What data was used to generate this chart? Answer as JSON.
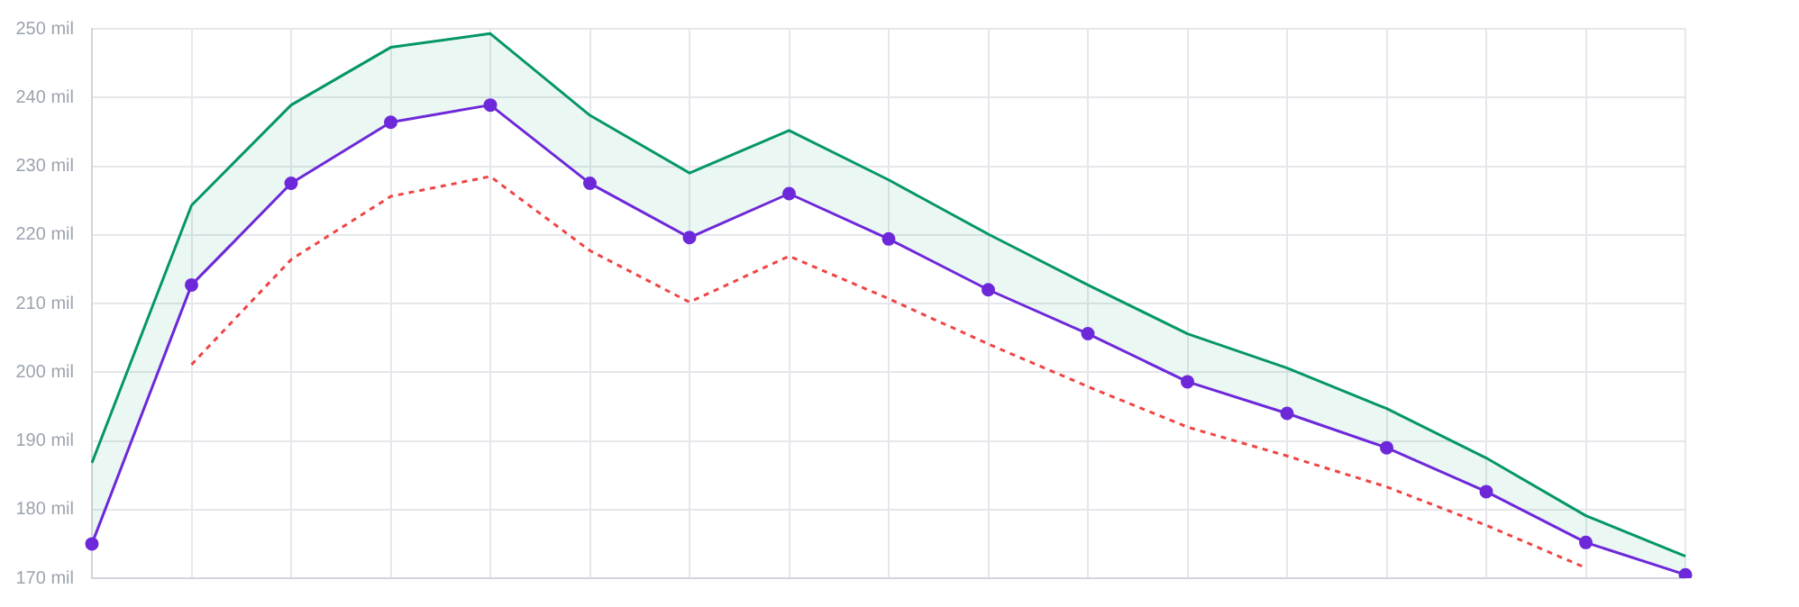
{
  "chart_data": {
    "type": "line",
    "categories": [
      null,
      null,
      null,
      null,
      null,
      null,
      null,
      null,
      null,
      null,
      null,
      null,
      null,
      null,
      null,
      null,
      null
    ],
    "ylim": [
      170,
      250
    ],
    "yticks": [
      {
        "value": 170,
        "label": "170 mil"
      },
      {
        "value": 180,
        "label": "180 mil"
      },
      {
        "value": 190,
        "label": "190 mil"
      },
      {
        "value": 200,
        "label": "200 mil"
      },
      {
        "value": 210,
        "label": "210 mil"
      },
      {
        "value": 220,
        "label": "220 mil"
      },
      {
        "value": 230,
        "label": "230 mil"
      },
      {
        "value": 240,
        "label": "240 mil"
      },
      {
        "value": 250,
        "label": "250 mil"
      }
    ],
    "grid": true,
    "tick_labels": "y",
    "legend": false,
    "series": [
      {
        "color": "#059669",
        "marker": "none",
        "line_style": "solid",
        "values": [
          186.8,
          224.3,
          238.9,
          247.3,
          249.3,
          237.4,
          229.0,
          235.2,
          228.0,
          220.1,
          212.7,
          205.6,
          200.6,
          194.7,
          187.5,
          179.1,
          173.2
        ],
        "lower": [
          175.0,
          212.7,
          227.5,
          236.4,
          238.9,
          227.5,
          219.6,
          226.0,
          219.4,
          212.0,
          205.6,
          198.6,
          194.0,
          189.0,
          182.6,
          175.2,
          170.5
        ],
        "upper": [
          186.8,
          224.3,
          238.9,
          247.3,
          249.3,
          237.4,
          229.0,
          235.2,
          228.0,
          220.1,
          212.7,
          205.6,
          200.6,
          194.7,
          187.5,
          179.1,
          173.2
        ]
      },
      {
        "color": "#6d28d9",
        "marker": "circle",
        "line_style": "solid",
        "values": [
          175.0,
          212.7,
          227.5,
          236.4,
          238.9,
          227.5,
          219.6,
          226.0,
          219.4,
          212.0,
          205.6,
          198.6,
          194.0,
          189.0,
          182.6,
          175.2,
          170.5
        ]
      },
      {
        "color": "#ef4444",
        "marker": "none",
        "line_style": "dashed",
        "values": [
          null,
          201.1,
          216.4,
          225.6,
          228.5,
          217.7,
          210.2,
          216.9,
          210.7,
          204.1,
          197.9,
          192.0,
          187.8,
          183.3,
          177.7,
          171.5,
          null
        ]
      }
    ]
  }
}
